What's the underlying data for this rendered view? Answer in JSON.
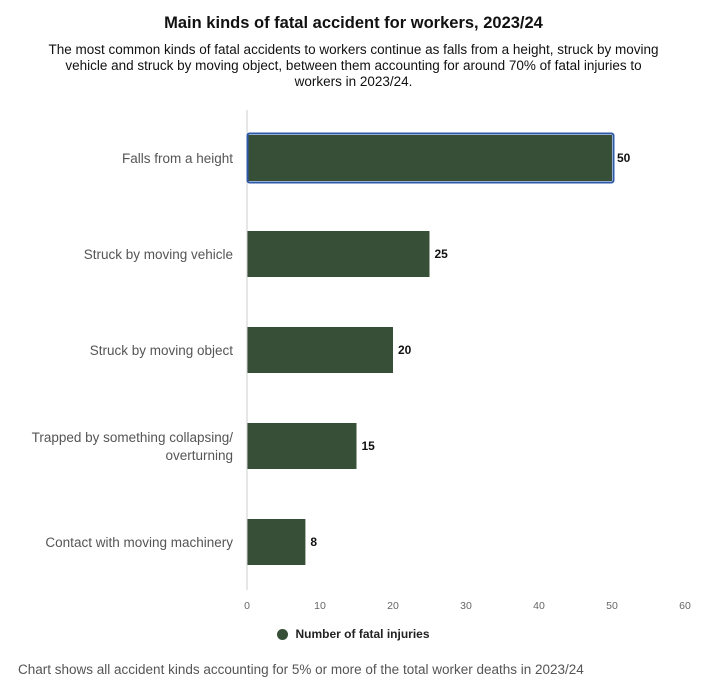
{
  "chart_data": {
    "type": "bar",
    "orientation": "horizontal",
    "title": "Main kinds of fatal accident for workers, 2023/24",
    "subtitle": "The most common kinds of fatal accidents to workers continue as falls from a height, struck by moving vehicle and struck by moving object, between them accounting for around 70% of fatal injuries to workers in 2023/24.",
    "categories": [
      [
        "Falls from a height"
      ],
      [
        "Struck by moving vehicle"
      ],
      [
        "Struck by moving object"
      ],
      [
        "Trapped by something collapsing/",
        "overturning"
      ],
      [
        "Contact with moving machinery"
      ]
    ],
    "series": [
      {
        "name": "Number of fatal injuries",
        "values": [
          50,
          25,
          20,
          15,
          8
        ]
      }
    ],
    "xlim": [
      0,
      60
    ],
    "x_ticks": [
      0,
      10,
      20,
      30,
      40,
      50,
      60
    ],
    "bar_color": "#374f36",
    "highlight_color": "#2f5aa8",
    "highlighted_index": 0,
    "grid": false,
    "legend_position": "bottom",
    "footnote": "Chart shows all accident kinds accounting for 5% or more of the total worker deaths in 2023/24"
  }
}
